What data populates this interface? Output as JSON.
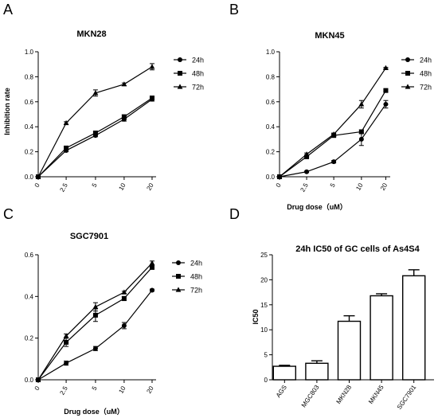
{
  "panels": [
    {
      "letter": "A"
    },
    {
      "letter": "B"
    },
    {
      "letter": "C"
    },
    {
      "letter": "D"
    }
  ],
  "chart_data": [
    {
      "type": "line",
      "title": "MKN28",
      "xlabel": "",
      "ylabel": "Inhibition rate",
      "categories": [
        "0",
        "2.5",
        "5",
        "10",
        "20"
      ],
      "yticks": [
        "0.0",
        "0.2",
        "0.4",
        "0.6",
        "0.8",
        "1.0"
      ],
      "ylim": [
        0,
        1.0
      ],
      "series": [
        {
          "name": "24h",
          "marker": "circle",
          "values": [
            0,
            0.21,
            0.33,
            0.46,
            0.62
          ],
          "errors": [
            0,
            0.01,
            0.01,
            0.015,
            0.015
          ]
        },
        {
          "name": "48h",
          "marker": "square",
          "values": [
            0,
            0.23,
            0.35,
            0.48,
            0.63
          ],
          "errors": [
            0,
            0.01,
            0.01,
            0.015,
            0.015
          ]
        },
        {
          "name": "72h",
          "marker": "triangle",
          "values": [
            0,
            0.43,
            0.67,
            0.74,
            0.88
          ],
          "errors": [
            0,
            0.01,
            0.025,
            0.01,
            0.025
          ]
        }
      ],
      "legend_position": "right"
    },
    {
      "type": "line",
      "title": "MKN45",
      "xlabel": "Drug dose（uM）",
      "ylabel": "",
      "categories": [
        "0",
        "2.5",
        "5",
        "10",
        "20"
      ],
      "yticks": [
        "0.0",
        "0.2",
        "0.4",
        "0.6",
        "0.8",
        "1.0"
      ],
      "ylim": [
        0,
        1.0
      ],
      "series": [
        {
          "name": "24h",
          "marker": "circle",
          "values": [
            0,
            0.04,
            0.12,
            0.3,
            0.58
          ],
          "errors": [
            0,
            0.005,
            0.01,
            0.05,
            0.03
          ]
        },
        {
          "name": "48h",
          "marker": "square",
          "values": [
            0,
            0.16,
            0.33,
            0.36,
            0.69
          ],
          "errors": [
            0,
            0.01,
            0.01,
            0.015,
            0.01
          ]
        },
        {
          "name": "72h",
          "marker": "triangle",
          "values": [
            0,
            0.18,
            0.34,
            0.58,
            0.87
          ],
          "errors": [
            0,
            0.01,
            0.01,
            0.03,
            0.005
          ]
        }
      ],
      "legend_position": "right"
    },
    {
      "type": "line",
      "title": "SGC7901",
      "xlabel": "Drug dose（uM）",
      "ylabel": "",
      "categories": [
        "0",
        "2.5",
        "5",
        "10",
        "20"
      ],
      "yticks": [
        "0.0",
        "0.2",
        "0.4",
        "0.6"
      ],
      "ylim": [
        0,
        0.6
      ],
      "series": [
        {
          "name": "24h",
          "marker": "circle",
          "values": [
            0,
            0.08,
            0.15,
            0.26,
            0.43
          ],
          "errors": [
            0,
            0.01,
            0.01,
            0.015,
            0.005
          ]
        },
        {
          "name": "48h",
          "marker": "square",
          "values": [
            0,
            0.18,
            0.31,
            0.39,
            0.54
          ],
          "errors": [
            0,
            0.02,
            0.03,
            0.01,
            0.01
          ]
        },
        {
          "name": "72h",
          "marker": "triangle",
          "values": [
            0,
            0.21,
            0.35,
            0.42,
            0.56
          ],
          "errors": [
            0,
            0.01,
            0.02,
            0.005,
            0.01
          ]
        }
      ],
      "legend_position": "right"
    },
    {
      "type": "bar",
      "title": "24h IC50 of GC cells of As4S4",
      "xlabel": "",
      "ylabel": "IC50",
      "categories": [
        "AGS",
        "MGC803",
        "MKN28",
        "MKN45",
        "SGC7901"
      ],
      "values": [
        2.7,
        3.3,
        11.7,
        16.8,
        20.8
      ],
      "errors": [
        0.2,
        0.5,
        1.1,
        0.4,
        1.2
      ],
      "yticks": [
        "0",
        "5",
        "10",
        "15",
        "20",
        "25"
      ],
      "ylim": [
        0,
        25
      ]
    }
  ]
}
